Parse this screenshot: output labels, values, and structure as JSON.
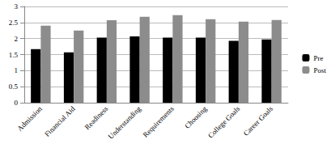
{
  "chart_data": {
    "type": "bar",
    "categories": [
      "Admission",
      "Financial Aid",
      "Readiness",
      "Understanding",
      "Requirements",
      "Choosing",
      "College Goals",
      "Career Goals"
    ],
    "series": [
      {
        "name": "Pre",
        "color": "#000000",
        "values": [
          1.67,
          1.57,
          2.03,
          2.07,
          2.03,
          2.03,
          1.93,
          1.97
        ]
      },
      {
        "name": "Post",
        "color": "#8c8c8c",
        "values": [
          2.4,
          2.25,
          2.57,
          2.68,
          2.73,
          2.6,
          2.53,
          2.58
        ]
      }
    ],
    "ylim": [
      0,
      3
    ],
    "yticks": [
      0,
      0.5,
      1,
      1.5,
      2,
      2.5,
      3
    ],
    "grid": true,
    "legend": "right"
  }
}
